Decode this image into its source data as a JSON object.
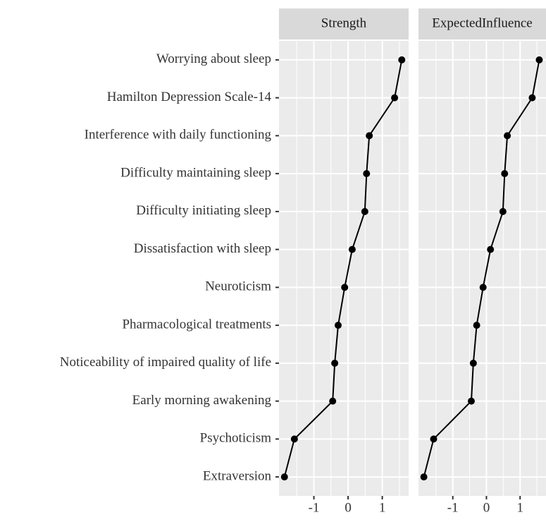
{
  "chart_data": {
    "type": "line",
    "categories": [
      "Worrying about sleep",
      "Hamilton Depression Scale-14",
      "Interference with daily functioning",
      "Difficulty maintaining sleep",
      "Difficulty initiating sleep",
      "Dissatisfaction with sleep",
      "Neuroticism",
      "Pharmacological treatments",
      "Noticeability of impaired quality of life",
      "Early morning awakening",
      "Psychoticism",
      "Extraversion"
    ],
    "series": [
      {
        "name": "Strength",
        "color": "#000000",
        "values": [
          1.57,
          1.36,
          0.62,
          0.54,
          0.49,
          0.12,
          -0.1,
          -0.29,
          -0.39,
          -0.45,
          -1.57,
          -1.86
        ]
      },
      {
        "name": "ExpectedInfluence",
        "color": "#000000",
        "values": [
          1.57,
          1.36,
          0.62,
          0.54,
          0.49,
          0.12,
          -0.1,
          -0.29,
          -0.39,
          -0.45,
          -1.57,
          -1.86
        ]
      }
    ],
    "xlim": [
      -2.02,
      1.77
    ],
    "xticks": [
      -1,
      0,
      1
    ],
    "grid": true
  }
}
